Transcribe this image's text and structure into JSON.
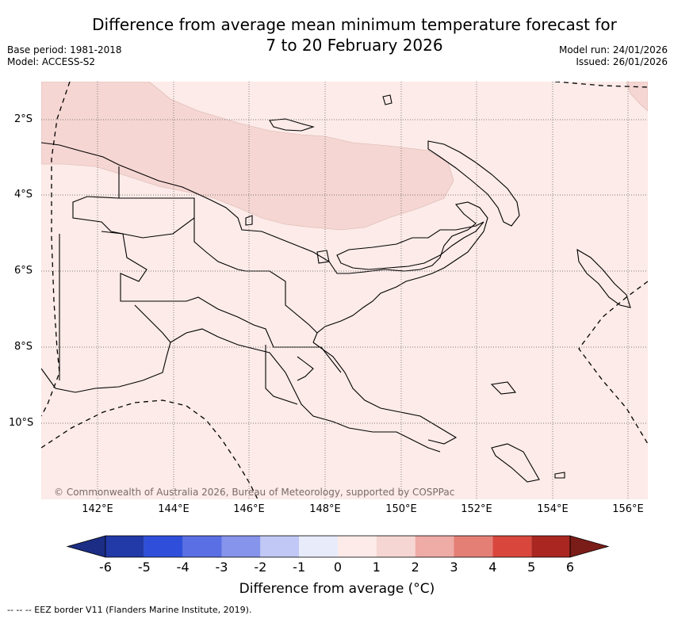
{
  "header": {
    "title_line1": "Difference from average mean minimum temperature forecast for",
    "title_line2": "7 to 20 February 2026",
    "base_period": "Base period: 1981-2018",
    "model": "Model: ACCESS-S2",
    "model_run": "Model run: 24/01/2026",
    "issued": "Issued: 26/01/2026"
  },
  "map": {
    "background_color": "#fcebe8",
    "region_color": "#f5d6d2",
    "lat_labels": [
      "2°S",
      "4°S",
      "6°S",
      "8°S",
      "10°S"
    ],
    "lon_labels": [
      "142°E",
      "144°E",
      "146°E",
      "148°E",
      "150°E",
      "152°E",
      "154°E",
      "156°E"
    ],
    "copyright": "© Commonwealth of Australia 2026, Bureau of Meteorology, supported by COSPPac"
  },
  "colorbar": {
    "title": "Difference from average (°C)",
    "ticks": [
      "-6",
      "-5",
      "-4",
      "-3",
      "-2",
      "-1",
      "0",
      "1",
      "2",
      "3",
      "4",
      "5",
      "6"
    ],
    "colors": [
      "#2239a8",
      "#2f4fdb",
      "#5a6fe3",
      "#8694ec",
      "#c1c8f5",
      "#e8ebfa",
      "#fcebe8",
      "#f5d6d2",
      "#efaba6",
      "#e47f76",
      "#d9473c",
      "#aa2620"
    ],
    "under_color": "#1c2d85",
    "over_color": "#7a1c18"
  },
  "footnote": "-- -- -- EEZ border V11 (Flanders Marine Institute, 2019)."
}
